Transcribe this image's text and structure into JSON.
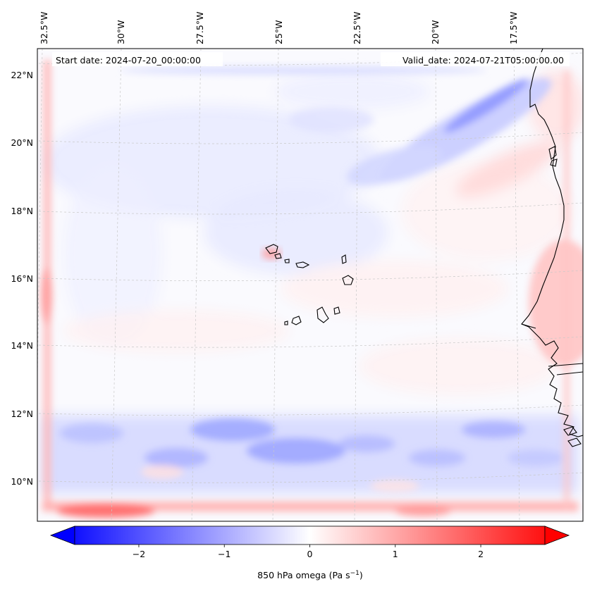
{
  "map": {
    "start_date": "Start date: 2024-07-20_00:00:00",
    "valid_date": "Valid_date: 2024-07-21T05:00:00.00",
    "lon_labels": [
      "32.5°W",
      "30°W",
      "27.5°W",
      "25°W",
      "22.5°W",
      "20°W",
      "17.5°W"
    ],
    "lat_labels": [
      "22°N",
      "20°N",
      "18°N",
      "16°N",
      "14°N",
      "12°N",
      "10°N"
    ],
    "variable": "850 hPa omega",
    "units": "Pa s",
    "units_exponent": "−1",
    "extent": {
      "lon_min": -33.0,
      "lon_max": -15.5,
      "lat_min": 8.9,
      "lat_max": 22.8
    },
    "colormap": "bwr",
    "colors": {
      "min": "#0000ff",
      "mid": "#ffffff",
      "max": "#ff0000",
      "coastline": "#000000"
    }
  },
  "colorbar": {
    "min": -2.75,
    "max": 2.75,
    "extend": "both",
    "tick_values": [
      -2,
      -1,
      0,
      1,
      2
    ],
    "tick_labels": [
      "−2",
      "−1",
      "0",
      "1",
      "2"
    ]
  }
}
